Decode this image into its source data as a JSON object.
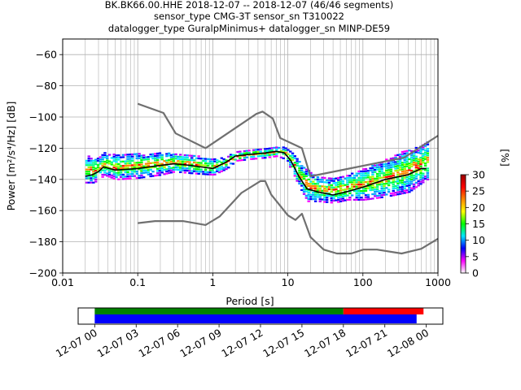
{
  "header": {
    "line1": "BK.BK66.00.HHE   2018-12-07 -- 2018-12-07  (46/46 segments)",
    "line2": "sensor_type CMG-3T sensor_sn T310022",
    "line3": "datalogger_type GuralpMinimus+ datalogger_sn MINP-DE59"
  },
  "axes": {
    "xlabel": "Period [s]",
    "ylabel": "Power [m²/s⁴/Hz] [dB]",
    "x_scale": "log",
    "xlim": [
      0.01,
      1000
    ],
    "ylim": [
      -200,
      -50
    ],
    "x_ticks": [
      "0.01",
      "0.1",
      "1",
      "10",
      "100",
      "1000"
    ],
    "x_tick_values": [
      0.01,
      0.1,
      1,
      10,
      100,
      1000
    ],
    "y_ticks": [
      "−200",
      "−180",
      "−160",
      "−140",
      "−120",
      "−100",
      "−80",
      "−60"
    ],
    "y_tick_values": [
      -200,
      -180,
      -160,
      -140,
      -120,
      -100,
      -80,
      -60
    ],
    "grid": true
  },
  "colorbar": {
    "label": "[%]",
    "min": 0,
    "max": 30,
    "ticks": [
      "0",
      "5",
      "10",
      "15",
      "20",
      "25",
      "30"
    ],
    "tick_values": [
      0,
      5,
      10,
      15,
      20,
      25,
      30
    ],
    "colors": [
      "#ffffff",
      "#ff00ff",
      "#0000ff",
      "#00e5ff",
      "#00ff00",
      "#ffff00",
      "#ff8800",
      "#ff0000",
      "#990000"
    ]
  },
  "chart_data": {
    "type": "line",
    "title": "BK.BK66.00.HHE   2018-12-07 -- 2018-12-07  (46/46 segments)",
    "xlabel": "Period [s]",
    "ylabel": "Power [m²/s⁴/Hz] [dB]",
    "xlim": [
      0.01,
      1000
    ],
    "ylim": [
      -200,
      -50
    ],
    "x_scale": "log",
    "series": [
      {
        "role": "noise-model-high",
        "color": "#707070",
        "x": [
          0.1,
          0.22,
          0.32,
          0.8,
          3.8,
          4.6,
          6.3,
          7.9,
          15.4,
          20,
          354.8,
          1000
        ],
        "y": [
          -91.5,
          -97.4,
          -110.5,
          -120,
          -98,
          -96.5,
          -101,
          -113.5,
          -120,
          -138,
          -126,
          -112
        ]
      },
      {
        "role": "noise-model-low",
        "color": "#707070",
        "x": [
          0.1,
          0.17,
          0.4,
          0.8,
          1.24,
          2.4,
          4.3,
          5.0,
          6.0,
          10,
          12.6,
          15.4,
          20,
          30,
          45,
          70,
          101,
          154,
          328,
          600,
          1000
        ],
        "y": [
          -168,
          -166.7,
          -166.7,
          -169.2,
          -163.7,
          -148.7,
          -141.1,
          -141.1,
          -149.7,
          -163,
          -166,
          -162,
          -177,
          -185,
          -187.5,
          -187.5,
          -185,
          -185,
          -187.5,
          -184.5,
          -178
        ]
      },
      {
        "role": "mean-psd",
        "color": "#000000",
        "x": [
          0.02,
          0.025,
          0.03,
          0.035,
          0.05,
          0.1,
          0.2,
          0.3,
          0.5,
          1,
          1.5,
          2,
          3,
          5,
          7,
          9,
          11,
          14,
          18,
          25,
          40,
          60,
          100,
          200,
          400,
          600,
          700
        ],
        "y": [
          -138,
          -137,
          -135,
          -132,
          -134,
          -133,
          -131,
          -130,
          -131,
          -133,
          -129,
          -125,
          -124,
          -123,
          -122,
          -123,
          -128,
          -138,
          -146,
          -148,
          -150,
          -148,
          -145,
          -140,
          -137,
          -133,
          -133
        ]
      }
    ],
    "histogram_band": {
      "x": [
        0.02,
        0.025,
        0.03,
        0.035,
        0.05,
        0.1,
        0.2,
        0.3,
        0.5,
        1,
        1.5,
        2,
        3,
        5,
        7,
        9,
        11,
        14,
        18,
        25,
        40,
        60,
        100,
        200,
        400,
        600,
        700
      ],
      "y_center": [
        -133,
        -134,
        -133,
        -130,
        -132,
        -131,
        -130,
        -129,
        -130,
        -132,
        -129,
        -125,
        -124,
        -123,
        -122,
        -123,
        -128,
        -137,
        -144,
        -146,
        -147,
        -145,
        -143,
        -139,
        -134,
        -130,
        -128
      ],
      "y_halfwidth": [
        9,
        8,
        7,
        7,
        8,
        8,
        7,
        6,
        6,
        5,
        4,
        3,
        3,
        3,
        3,
        4,
        6,
        8,
        10,
        8,
        8,
        8,
        10,
        12,
        14,
        12,
        12
      ]
    }
  },
  "timeline": {
    "tick_labels": [
      "12-07 00",
      "12-07 03",
      "12-07 06",
      "12-07 09",
      "12-07 12",
      "12-07 15",
      "12-07 18",
      "12-07 21",
      "12-08 00"
    ],
    "start_hours": -1.2,
    "end_hours": 25.2,
    "tick_hours": [
      0,
      3,
      6,
      9,
      12,
      15,
      18,
      21,
      24
    ],
    "bars": [
      {
        "color": "#008000",
        "start_hours": 0,
        "end_hours": 18
      },
      {
        "color": "#ff0000",
        "start_hours": 18,
        "end_hours": 23.8
      },
      {
        "color": "#0000ff",
        "start_hours": 0,
        "end_hours": 23.3
      }
    ]
  }
}
